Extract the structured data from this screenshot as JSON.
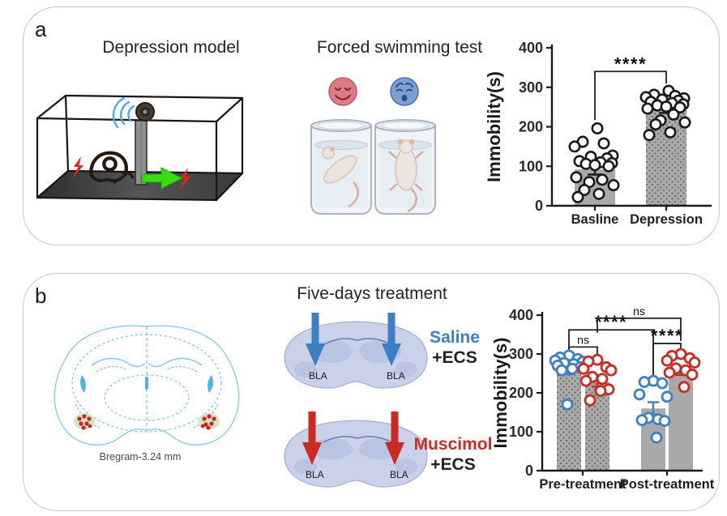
{
  "panel_a": {
    "label": "a",
    "model_title": "Depression model",
    "fst_title": "Forced swimming test"
  },
  "panel_b": {
    "label": "b",
    "treatment_title": "Five-days treatment",
    "atlas_caption": "Bregram-3.24 mm",
    "bla_label": "BLA",
    "groups": [
      {
        "name": "Saline",
        "suffix": "+ECS"
      },
      {
        "name": "Muscimol",
        "suffix": "+ECS"
      }
    ]
  },
  "colors": {
    "saline": "#3d7fc4",
    "muscimol": "#cc2a23",
    "bar_gray": "#a9a9a9",
    "shock_red": "#e82315",
    "go_green": "#3bdb12",
    "sound_blue": "#55a8e8",
    "happy_face": "#dd7b85",
    "sad_face": "#7aa0d6",
    "atlas_blue": "#8cc8ec",
    "injection_red": "#cc2222"
  },
  "chart_data": [
    {
      "type": "bar",
      "title": "",
      "ylabel": "Immobility(s)",
      "ylim": [
        0,
        400
      ],
      "yticks": [
        0,
        100,
        200,
        300,
        400
      ],
      "categories": [
        "Basline",
        "Depression"
      ],
      "bar_fill": "#a9a9a9",
      "bars": [
        {
          "group": "Basline",
          "mean": 92,
          "sem": 13,
          "pattern": "solid",
          "color": "#1a1a1a",
          "points": [
            196,
            162,
            158,
            150,
            127,
            124,
            120,
            113,
            110,
            108,
            106,
            103,
            100,
            72,
            66,
            60,
            52,
            40,
            30,
            22
          ]
        },
        {
          "group": "Depression",
          "mean": 243,
          "sem": 8,
          "pattern": "dots",
          "color": "#1a1a1a",
          "points": [
            291,
            281,
            278,
            275,
            272,
            269,
            266,
            263,
            260,
            257,
            254,
            251,
            249,
            246,
            231,
            216,
            211,
            206,
            186,
            179
          ]
        }
      ],
      "significance": [
        {
          "from": 0,
          "to": 1,
          "label": "****",
          "y": 340
        }
      ]
    },
    {
      "type": "bar",
      "title": "",
      "ylabel": "Immobility(s)",
      "ylim": [
        0,
        400
      ],
      "yticks": [
        0,
        100,
        200,
        300,
        400
      ],
      "categories": [
        "Pre-treatment",
        "Post-treatment"
      ],
      "bar_fill": "#a9a9a9",
      "bars": [
        {
          "group": "Saline+ECS",
          "category": "Pre-treatment",
          "mean": 258,
          "sem": 10,
          "pattern": "dots",
          "color": "#3d7fc4",
          "points": [
            296,
            291,
            287,
            283,
            280,
            277,
            274,
            270,
            266,
            262,
            258,
            170
          ]
        },
        {
          "group": "Muscimol+ECS",
          "category": "Pre-treatment",
          "mean": 228,
          "sem": 12,
          "pattern": "dots",
          "color": "#cc2a23",
          "points": [
            285,
            281,
            266,
            262,
            258,
            241,
            236,
            231,
            209,
            205,
            181
          ]
        },
        {
          "group": "Saline+ECS",
          "category": "Post-treatment",
          "mean": 160,
          "sem": 16,
          "pattern": "solid",
          "color": "#3d7fc4",
          "points": [
            231,
            228,
            225,
            196,
            190,
            136,
            132,
            130,
            128,
            85
          ]
        },
        {
          "group": "Muscimol+ECS",
          "category": "Post-treatment",
          "mean": 255,
          "sem": 9,
          "pattern": "solid",
          "color": "#cc2a23",
          "points": [
            300,
            295,
            289,
            283,
            278,
            263,
            258,
            252,
            247,
            215
          ]
        }
      ],
      "significance": [
        {
          "from": 0,
          "to": 1,
          "label": "ns",
          "y": 318
        },
        {
          "from": 0,
          "to": 2,
          "label": "****",
          "y": 362
        },
        {
          "from": 2,
          "to": 3,
          "label": "****",
          "y": 327
        },
        {
          "from": 1,
          "to": 3,
          "label": "ns",
          "y": 392
        }
      ]
    }
  ]
}
